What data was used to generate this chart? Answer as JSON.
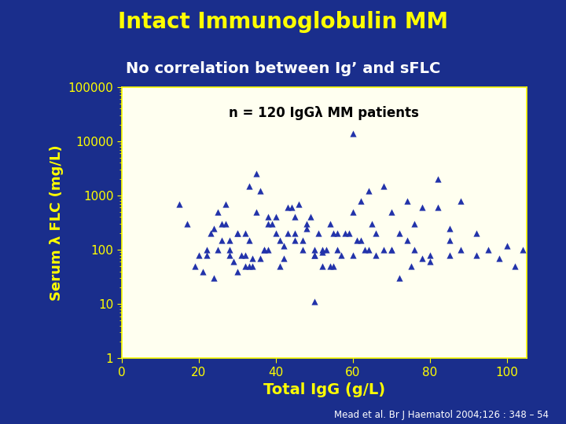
{
  "title": "Intact Immunoglobulin MM",
  "subtitle": "No correlation between Ig’ and sFLC",
  "annotation": "n = 120 IgGλ MM patients",
  "xlabel": "Total IgG (g/L)",
  "ylabel": "Serum λ FLC (mg/L)",
  "citation": "Mead et al. Br J Haematol 2004;126 : 348 – 54",
  "background_color": "#1a2e8c",
  "plot_bg_color": "#fffff0",
  "title_color": "#ffff00",
  "subtitle_color": "#ffffff",
  "axis_label_color": "#ffff00",
  "tick_color": "#ffff00",
  "annotation_color": "#000000",
  "marker_color": "#2233aa",
  "citation_color": "#ffffff",
  "xlim": [
    0,
    105
  ],
  "ylim_log": [
    1,
    100000
  ],
  "xticks": [
    0,
    20,
    40,
    60,
    80,
    100
  ],
  "yticks": [
    1,
    10,
    100,
    1000,
    10000,
    100000
  ],
  "ytick_labels": [
    "1",
    "10",
    "100",
    "1000",
    "10000",
    "100000"
  ],
  "x_data": [
    15,
    17,
    19,
    20,
    21,
    22,
    23,
    24,
    25,
    26,
    22,
    24,
    26,
    28,
    29,
    30,
    31,
    32,
    33,
    34,
    25,
    27,
    28,
    30,
    32,
    33,
    35,
    36,
    37,
    38,
    28,
    30,
    32,
    34,
    36,
    38,
    40,
    41,
    42,
    43,
    35,
    37,
    39,
    41,
    43,
    45,
    47,
    48,
    50,
    52,
    38,
    40,
    42,
    44,
    46,
    48,
    50,
    52,
    54,
    56,
    45,
    47,
    49,
    51,
    53,
    55,
    57,
    59,
    61,
    63,
    50,
    52,
    54,
    56,
    58,
    60,
    62,
    64,
    66,
    68,
    60,
    62,
    64,
    66,
    68,
    70,
    72,
    74,
    76,
    78,
    70,
    72,
    74,
    76,
    78,
    80,
    82,
    85,
    88,
    92,
    80,
    82,
    85,
    88,
    92,
    95,
    98,
    100,
    102,
    104,
    27,
    33,
    45,
    50,
    55,
    60,
    65,
    70,
    75,
    85
  ],
  "y_data": [
    700,
    300,
    50,
    80,
    40,
    100,
    200,
    30,
    500,
    150,
    80,
    250,
    300,
    100,
    60,
    200,
    80,
    50,
    150,
    70,
    100,
    300,
    80,
    40,
    200,
    50,
    500,
    70,
    100,
    300,
    150,
    200,
    80,
    50,
    1200,
    100,
    400,
    50,
    70,
    200,
    2500,
    100,
    300,
    150,
    600,
    200,
    150,
    300,
    80,
    100,
    400,
    200,
    120,
    600,
    700,
    250,
    100,
    50,
    300,
    200,
    150,
    100,
    400,
    200,
    100,
    50,
    80,
    200,
    150,
    100,
    80,
    90,
    50,
    100,
    200,
    80,
    150,
    100,
    200,
    100,
    14000,
    800,
    1200,
    80,
    1500,
    500,
    200,
    800,
    300,
    600,
    100,
    30,
    150,
    100,
    70,
    80,
    2000,
    150,
    100,
    80,
    60,
    600,
    250,
    800,
    200,
    100,
    70,
    120,
    50,
    100,
    700,
    1500,
    400,
    11,
    200,
    500,
    300,
    100,
    50,
    80
  ]
}
